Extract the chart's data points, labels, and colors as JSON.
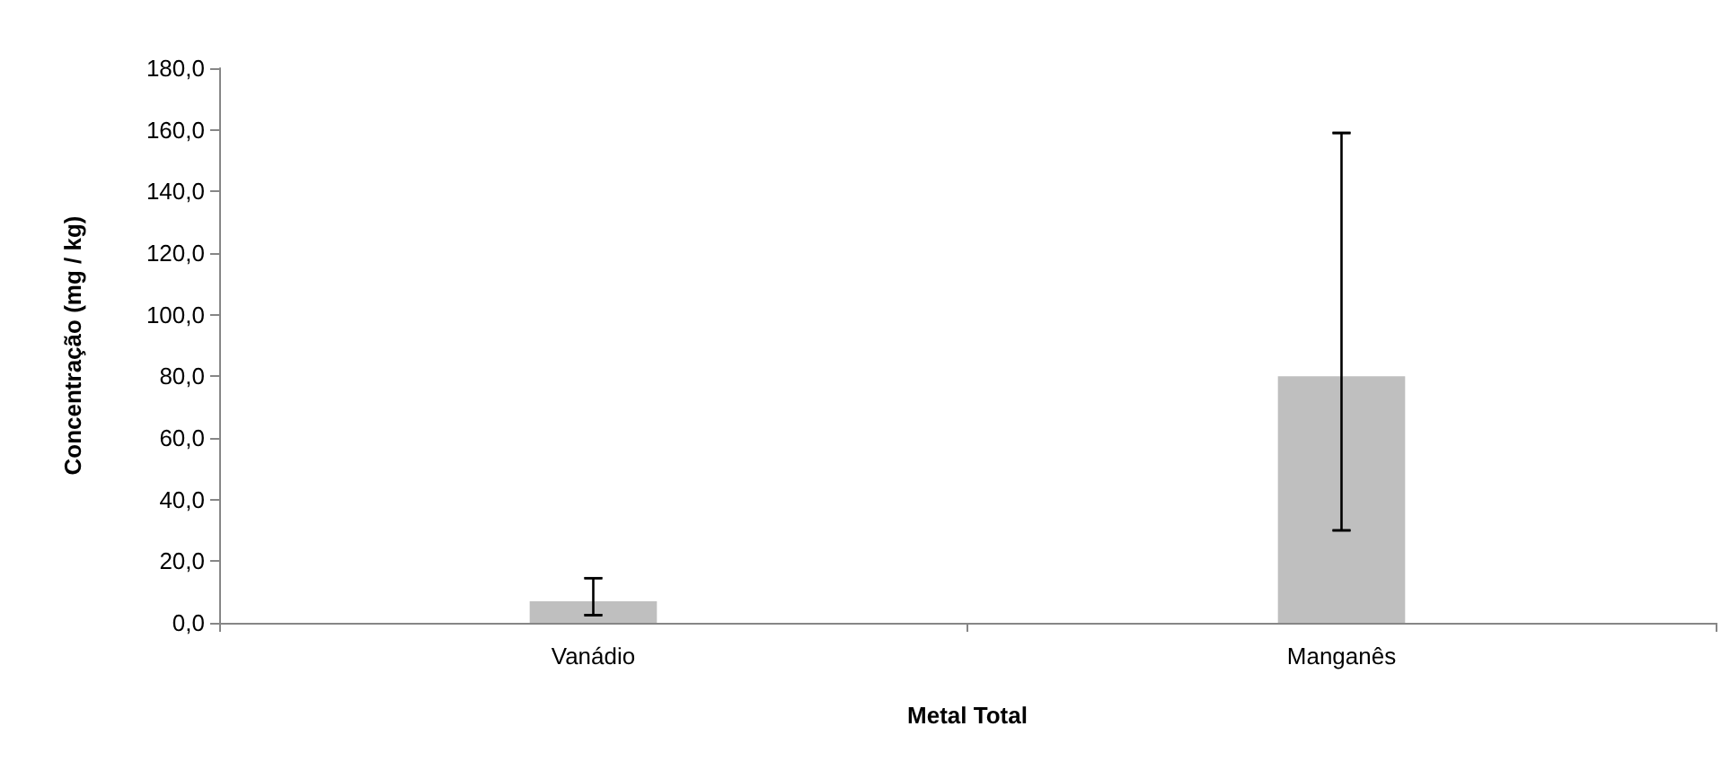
{
  "chart_data": {
    "type": "bar",
    "xlabel": "Metal Total",
    "ylabel": "Concentração (mg / kg)",
    "categories": [
      "Vanádio",
      "Manganês"
    ],
    "values": [
      7,
      80
    ],
    "color": "#bfbfbf",
    "errors": [
      [
        2.5,
        14.5
      ],
      [
        30,
        159
      ]
    ],
    "ylim": [
      0,
      180
    ],
    "yticks": [
      {
        "value": 0,
        "label": "0,0"
      },
      {
        "value": 20,
        "label": "20,0"
      },
      {
        "value": 40,
        "label": "40,0"
      },
      {
        "value": 60,
        "label": "60,0"
      },
      {
        "value": 80,
        "label": "80,0"
      },
      {
        "value": 100,
        "label": "100,0"
      },
      {
        "value": 120,
        "label": "120,0"
      },
      {
        "value": 140,
        "label": "140,0"
      },
      {
        "value": 160,
        "label": "160,0"
      },
      {
        "value": 180,
        "label": "180,0"
      }
    ],
    "grid": false
  }
}
